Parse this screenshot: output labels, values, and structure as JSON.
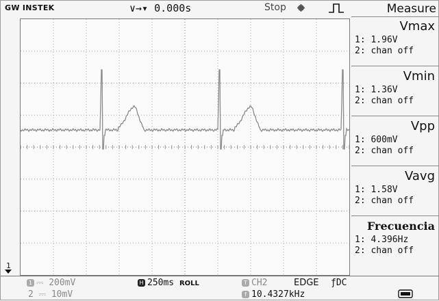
{
  "header": {
    "brand": "GW INSTEK",
    "trigger_position": "∨→▾ 0.000s",
    "run_status": "Stop"
  },
  "channel_marker": "1",
  "measure": {
    "title": "Measure",
    "items": [
      {
        "name": "Vmax",
        "ch1": "1: 1.96V",
        "ch2": "2: chan off"
      },
      {
        "name": "Vmin",
        "ch1": "1: 1.36V",
        "ch2": "2: chan off"
      },
      {
        "name": "Vpp",
        "ch1": "1: 600mV",
        "ch2": "2: chan off"
      },
      {
        "name": "Vavg",
        "ch1": "1: 1.58V",
        "ch2": "2: chan off"
      },
      {
        "name": "Frecuencia",
        "ch1": "1: 4.396Hz",
        "ch2": "2: chan off"
      }
    ]
  },
  "footer": {
    "ch1_scale": "200mV",
    "ch2_scale": "10mV",
    "ch2_index": "2",
    "timebase": "250ms",
    "mode": "ROLL",
    "trigger_source": "CH2",
    "trigger_type": "EDGE",
    "trigger_slope": "ƒ",
    "coupling": "DC",
    "frequency": "10.4327kHz"
  },
  "icons": {
    "stop": "stop-indicator-icon",
    "edge": "rising-edge-icon",
    "usb": "usb-icon"
  }
}
